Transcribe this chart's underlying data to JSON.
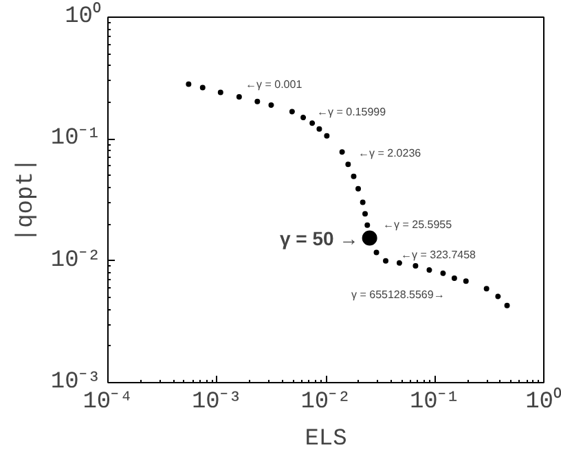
{
  "chart_data": {
    "type": "scatter",
    "xlabel": "ELS",
    "ylabel": "|qopt|",
    "log": "xy",
    "grid": false,
    "marker": "circle",
    "xlim": [
      0.0001,
      1
    ],
    "ylim": [
      0.001,
      1
    ],
    "xticks": [
      {
        "value": 0.0001,
        "label": "10⁻⁴"
      },
      {
        "value": 0.001,
        "label": "10⁻³"
      },
      {
        "value": 0.01,
        "label": "10⁻²"
      },
      {
        "value": 0.1,
        "label": "10⁻¹"
      },
      {
        "value": 1,
        "label": "10⁰"
      }
    ],
    "yticks": [
      {
        "value": 0.001,
        "label": "10⁻³"
      },
      {
        "value": 0.01,
        "label": "10⁻²"
      },
      {
        "value": 0.1,
        "label": "10⁻¹"
      },
      {
        "value": 1,
        "label": "10⁰"
      }
    ],
    "series": [
      {
        "color": "#000000",
        "x": [
          0.00055,
          0.00074,
          0.00108,
          0.0016,
          0.00235,
          0.00315,
          0.0049,
          0.0062,
          0.0075,
          0.0087,
          0.0102,
          0.0141,
          0.016,
          0.018,
          0.0198,
          0.0218,
          0.0229,
          0.024,
          0.0291,
          0.0354,
          0.0473,
          0.0665,
          0.089,
          0.119,
          0.151,
          0.193,
          0.298,
          0.38,
          0.46
        ],
        "values": [
          0.282,
          0.264,
          0.241,
          0.222,
          0.203,
          0.19,
          0.168,
          0.15,
          0.135,
          0.121,
          0.106,
          0.0783,
          0.062,
          0.0494,
          0.0391,
          0.0302,
          0.0243,
          0.0196,
          0.0117,
          0.00998,
          0.0096,
          0.0091,
          0.0084,
          0.0079,
          0.0072,
          0.0068,
          0.0059,
          0.0051,
          0.0043
        ]
      },
      {
        "color": "#000000",
        "x": [
          0.0252
        ],
        "values": [
          0.0154
        ]
      }
    ],
    "annotations": [
      "←γ = 0.001",
      "←γ = 0.15999",
      "←γ = 2.0236",
      "←γ = 25.5955",
      "←γ = 323.7458",
      "γ = 655128.5569→",
      "γ = 50 →"
    ]
  }
}
